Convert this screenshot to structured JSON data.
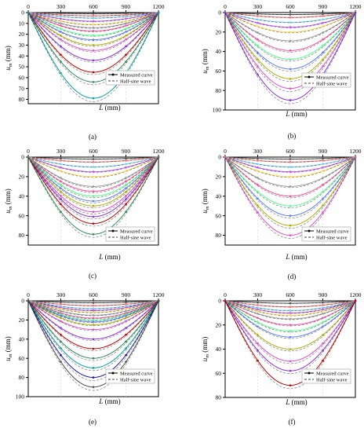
{
  "legend": {
    "measured": "Measured curve",
    "halfsine": "Half-sine wave"
  },
  "axis_labels": {
    "x_var": "L",
    "x_unit": " (mm)",
    "y_var": "u",
    "y_sub": "m",
    "y_unit": " (mm)"
  },
  "colors": {
    "measured_line": "#000000",
    "halfsine_line": "#000000",
    "curve_palette": [
      "#4d4d4d",
      "#ff6f6f",
      "#6fd3ff",
      "#c64dff",
      "#ffd84d",
      "#9a9a9a",
      "#ff4d9e",
      "#4dff8a",
      "#5a7dff",
      "#b0b000",
      "#e04dd0",
      "#8a2be2",
      "#c00000",
      "#2e8b57",
      "#00a0a0",
      "#1a1aa0"
    ]
  },
  "chart_data": [
    {
      "type": "line",
      "label": "(a)",
      "x": [
        0,
        300,
        600,
        900,
        1200
      ],
      "xticks": [
        0,
        300,
        600,
        900,
        1200
      ],
      "xlim": [
        0,
        1200
      ],
      "yticks": [
        0,
        10,
        20,
        30,
        40,
        50,
        60,
        70,
        80
      ],
      "ylim": [
        0,
        84
      ],
      "max_deflections": [
        1,
        3,
        5,
        8,
        11,
        14,
        17,
        21,
        25,
        30,
        35,
        44,
        55,
        64,
        79
      ]
    },
    {
      "type": "line",
      "label": "(b)",
      "x": [
        0,
        300,
        600,
        900,
        1200
      ],
      "xticks": [
        0,
        300,
        600,
        900,
        1200
      ],
      "xlim": [
        0,
        1200
      ],
      "yticks": [
        0,
        20,
        40,
        60,
        80,
        100
      ],
      "ylim": [
        0,
        100
      ],
      "max_deflections": [
        2,
        5,
        10,
        15,
        20,
        29,
        39,
        48,
        58,
        68,
        78,
        90
      ]
    },
    {
      "type": "line",
      "label": "(c)",
      "x": [
        0,
        300,
        600,
        900,
        1200
      ],
      "xticks": [
        0,
        300,
        600,
        900,
        1200
      ],
      "xlim": [
        0,
        1200
      ],
      "yticks": [
        0,
        20,
        40,
        60,
        80
      ],
      "ylim": [
        0,
        90
      ],
      "max_deflections": [
        2,
        5,
        10,
        15,
        20,
        30,
        35,
        40,
        45,
        50,
        56,
        61,
        68,
        79
      ]
    },
    {
      "type": "line",
      "label": "(d)",
      "x": [
        0,
        300,
        600,
        900,
        1200
      ],
      "xticks": [
        0,
        300,
        600,
        900,
        1200
      ],
      "xlim": [
        0,
        1200
      ],
      "yticks": [
        0,
        20,
        40,
        60,
        80
      ],
      "ylim": [
        0,
        90
      ],
      "max_deflections": [
        2,
        5,
        10,
        15,
        20,
        30,
        40,
        50,
        60,
        70,
        80
      ]
    },
    {
      "type": "line",
      "label": "(e)",
      "x": [
        0,
        300,
        600,
        900,
        1200
      ],
      "xticks": [
        0,
        300,
        600,
        900,
        1200
      ],
      "xlim": [
        0,
        1200
      ],
      "yticks": [
        0,
        20,
        40,
        60,
        80,
        100
      ],
      "ylim": [
        0,
        100
      ],
      "max_deflections": [
        2,
        5,
        8,
        10,
        12,
        15,
        18,
        20,
        22,
        25,
        30,
        40,
        50,
        60,
        70,
        80,
        90
      ]
    },
    {
      "type": "line",
      "label": "(f)",
      "x": [
        0,
        300,
        600,
        900,
        1200
      ],
      "xticks": [
        0,
        300,
        600,
        900,
        1200
      ],
      "xlim": [
        0,
        1200
      ],
      "yticks": [
        0,
        20,
        40,
        60,
        80
      ],
      "ylim": [
        0,
        80
      ],
      "max_deflections": [
        2,
        5,
        8,
        10,
        12,
        15,
        20,
        25,
        30,
        40,
        50,
        58,
        70
      ]
    }
  ]
}
